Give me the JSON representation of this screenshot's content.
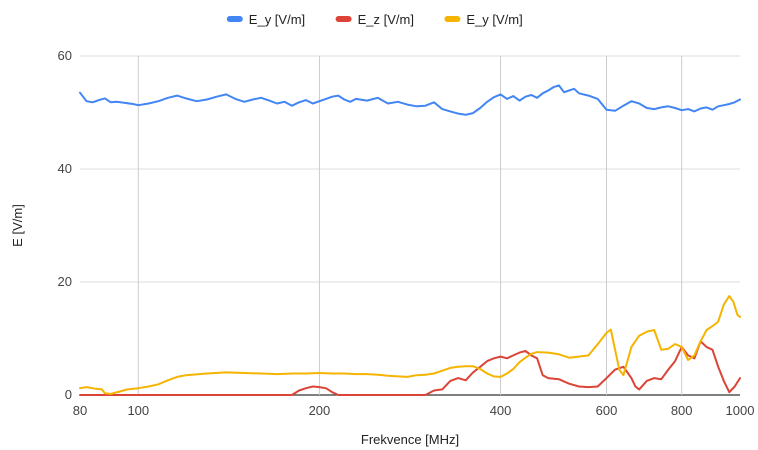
{
  "chart_data": {
    "type": "line",
    "title": "",
    "xlabel": "Frekvence [MHz]",
    "ylabel": "E [V/m]",
    "xscale": "log",
    "xlim": [
      80,
      1000
    ],
    "ylim": [
      0,
      60
    ],
    "xticks": [
      80,
      100,
      200,
      400,
      600,
      800,
      1000
    ],
    "xtick_labels": [
      "80",
      "100",
      "200",
      "400",
      "600",
      "800",
      "1000"
    ],
    "yticks": [
      0,
      20,
      40,
      60
    ],
    "ytick_labels": [
      "0",
      "20",
      "40",
      "60"
    ],
    "grid": true,
    "legend_position": "top",
    "series": [
      {
        "name": "E_y [V/m]",
        "color": "#4285f4",
        "points": [
          [
            80,
            53.5
          ],
          [
            82,
            52
          ],
          [
            84,
            51.8
          ],
          [
            86,
            52.2
          ],
          [
            88,
            52.5
          ],
          [
            90,
            51.8
          ],
          [
            92,
            51.9
          ],
          [
            95,
            51.7
          ],
          [
            98,
            51.5
          ],
          [
            100,
            51.3
          ],
          [
            104,
            51.6
          ],
          [
            108,
            52
          ],
          [
            112,
            52.6
          ],
          [
            116,
            53
          ],
          [
            120,
            52.5
          ],
          [
            125,
            52
          ],
          [
            130,
            52.3
          ],
          [
            135,
            52.8
          ],
          [
            140,
            53.2
          ],
          [
            145,
            52.4
          ],
          [
            150,
            51.9
          ],
          [
            155,
            52.3
          ],
          [
            160,
            52.6
          ],
          [
            165,
            52.1
          ],
          [
            170,
            51.6
          ],
          [
            175,
            51.9
          ],
          [
            180,
            51.2
          ],
          [
            185,
            51.8
          ],
          [
            190,
            52.2
          ],
          [
            195,
            51.6
          ],
          [
            200,
            52
          ],
          [
            205,
            52.4
          ],
          [
            210,
            52.8
          ],
          [
            215,
            53
          ],
          [
            220,
            52.3
          ],
          [
            225,
            51.9
          ],
          [
            230,
            52.4
          ],
          [
            240,
            52.1
          ],
          [
            250,
            52.6
          ],
          [
            260,
            51.6
          ],
          [
            270,
            51.9
          ],
          [
            280,
            51.4
          ],
          [
            290,
            51.1
          ],
          [
            300,
            51.2
          ],
          [
            310,
            51.8
          ],
          [
            320,
            50.6
          ],
          [
            330,
            50.2
          ],
          [
            340,
            49.8
          ],
          [
            350,
            49.6
          ],
          [
            360,
            49.9
          ],
          [
            370,
            50.8
          ],
          [
            380,
            51.9
          ],
          [
            390,
            52.7
          ],
          [
            400,
            53.2
          ],
          [
            410,
            52.4
          ],
          [
            420,
            52.9
          ],
          [
            430,
            52.1
          ],
          [
            440,
            52.8
          ],
          [
            450,
            53.1
          ],
          [
            460,
            52.6
          ],
          [
            470,
            53.4
          ],
          [
            480,
            53.9
          ],
          [
            490,
            54.5
          ],
          [
            500,
            54.8
          ],
          [
            510,
            53.6
          ],
          [
            520,
            53.9
          ],
          [
            530,
            54.2
          ],
          [
            540,
            53.4
          ],
          [
            560,
            53
          ],
          [
            580,
            52.4
          ],
          [
            600,
            50.5
          ],
          [
            620,
            50.3
          ],
          [
            640,
            51.2
          ],
          [
            660,
            52
          ],
          [
            680,
            51.6
          ],
          [
            700,
            50.8
          ],
          [
            720,
            50.6
          ],
          [
            740,
            50.9
          ],
          [
            760,
            51.1
          ],
          [
            780,
            50.8
          ],
          [
            800,
            50.4
          ],
          [
            820,
            50.6
          ],
          [
            840,
            50.2
          ],
          [
            860,
            50.7
          ],
          [
            880,
            50.9
          ],
          [
            900,
            50.5
          ],
          [
            920,
            51.1
          ],
          [
            940,
            51.3
          ],
          [
            960,
            51.5
          ],
          [
            980,
            51.8
          ],
          [
            1000,
            52.3
          ]
        ]
      },
      {
        "name": "E_z [V/m]",
        "color": "#db4437",
        "points": [
          [
            80,
            0
          ],
          [
            100,
            0
          ],
          [
            150,
            0
          ],
          [
            180,
            0
          ],
          [
            185,
            0.8
          ],
          [
            190,
            1.2
          ],
          [
            195,
            1.5
          ],
          [
            200,
            1.4
          ],
          [
            205,
            1.2
          ],
          [
            210,
            0.5
          ],
          [
            215,
            0
          ],
          [
            230,
            0
          ],
          [
            280,
            0
          ],
          [
            300,
            0
          ],
          [
            310,
            0.8
          ],
          [
            320,
            1
          ],
          [
            330,
            2.5
          ],
          [
            340,
            3
          ],
          [
            350,
            2.6
          ],
          [
            360,
            4
          ],
          [
            370,
            5
          ],
          [
            380,
            6
          ],
          [
            390,
            6.5
          ],
          [
            400,
            6.8
          ],
          [
            410,
            6.5
          ],
          [
            420,
            7
          ],
          [
            430,
            7.5
          ],
          [
            440,
            7.8
          ],
          [
            450,
            7
          ],
          [
            460,
            6.5
          ],
          [
            470,
            3.5
          ],
          [
            480,
            3
          ],
          [
            500,
            2.8
          ],
          [
            520,
            2
          ],
          [
            540,
            1.5
          ],
          [
            560,
            1.4
          ],
          [
            580,
            1.5
          ],
          [
            600,
            3
          ],
          [
            620,
            4.5
          ],
          [
            640,
            5
          ],
          [
            660,
            3
          ],
          [
            670,
            1.5
          ],
          [
            680,
            1
          ],
          [
            700,
            2.5
          ],
          [
            720,
            3
          ],
          [
            740,
            2.8
          ],
          [
            760,
            4.5
          ],
          [
            780,
            6
          ],
          [
            800,
            8.5
          ],
          [
            820,
            7
          ],
          [
            840,
            6.5
          ],
          [
            860,
            9.5
          ],
          [
            880,
            8.5
          ],
          [
            900,
            8
          ],
          [
            920,
            5
          ],
          [
            940,
            2.5
          ],
          [
            960,
            0.5
          ],
          [
            980,
            1.5
          ],
          [
            1000,
            3
          ]
        ]
      },
      {
        "name": "E_y [V/m]",
        "color": "#f4b400",
        "points": [
          [
            80,
            1.2
          ],
          [
            82,
            1.4
          ],
          [
            85,
            1.1
          ],
          [
            87,
            1
          ],
          [
            88,
            0.3
          ],
          [
            90,
            0.2
          ],
          [
            93,
            0.6
          ],
          [
            96,
            1
          ],
          [
            100,
            1.2
          ],
          [
            104,
            1.5
          ],
          [
            108,
            1.9
          ],
          [
            112,
            2.6
          ],
          [
            116,
            3.2
          ],
          [
            120,
            3.5
          ],
          [
            130,
            3.8
          ],
          [
            140,
            4
          ],
          [
            150,
            3.9
          ],
          [
            160,
            3.8
          ],
          [
            170,
            3.7
          ],
          [
            180,
            3.8
          ],
          [
            190,
            3.8
          ],
          [
            200,
            3.9
          ],
          [
            210,
            3.8
          ],
          [
            220,
            3.8
          ],
          [
            230,
            3.7
          ],
          [
            240,
            3.7
          ],
          [
            250,
            3.6
          ],
          [
            260,
            3.4
          ],
          [
            270,
            3.3
          ],
          [
            280,
            3.2
          ],
          [
            290,
            3.5
          ],
          [
            300,
            3.6
          ],
          [
            310,
            3.8
          ],
          [
            320,
            4.3
          ],
          [
            330,
            4.8
          ],
          [
            340,
            5
          ],
          [
            350,
            5.1
          ],
          [
            360,
            5.1
          ],
          [
            370,
            4.6
          ],
          [
            380,
            3.8
          ],
          [
            390,
            3.3
          ],
          [
            400,
            3.2
          ],
          [
            410,
            3.8
          ],
          [
            420,
            4.6
          ],
          [
            430,
            5.8
          ],
          [
            440,
            6.6
          ],
          [
            450,
            7.3
          ],
          [
            460,
            7.6
          ],
          [
            480,
            7.5
          ],
          [
            500,
            7.2
          ],
          [
            520,
            6.6
          ],
          [
            540,
            6.8
          ],
          [
            560,
            7
          ],
          [
            580,
            9
          ],
          [
            600,
            11
          ],
          [
            610,
            11.6
          ],
          [
            620,
            8
          ],
          [
            630,
            4.5
          ],
          [
            640,
            3.5
          ],
          [
            650,
            6
          ],
          [
            660,
            8.5
          ],
          [
            680,
            10.5
          ],
          [
            700,
            11.2
          ],
          [
            720,
            11.5
          ],
          [
            740,
            8
          ],
          [
            760,
            8.2
          ],
          [
            780,
            9
          ],
          [
            800,
            8.5
          ],
          [
            820,
            6.2
          ],
          [
            840,
            7
          ],
          [
            860,
            9.5
          ],
          [
            880,
            11.5
          ],
          [
            900,
            12.2
          ],
          [
            920,
            13
          ],
          [
            940,
            16
          ],
          [
            960,
            17.5
          ],
          [
            975,
            16.5
          ],
          [
            990,
            14.2
          ],
          [
            1000,
            13.8
          ]
        ]
      }
    ]
  }
}
